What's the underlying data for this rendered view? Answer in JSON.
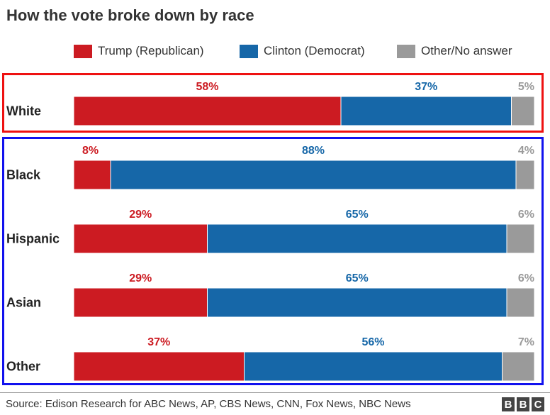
{
  "chart_data": {
    "type": "bar",
    "orientation": "horizontal",
    "stacked": true,
    "title": "How the vote broke down by race",
    "categories": [
      "White",
      "Black",
      "Hispanic",
      "Asian",
      "Other"
    ],
    "series": [
      {
        "name": "Trump (Republican)",
        "color": "#cc1b22",
        "values": [
          58,
          8,
          29,
          29,
          37
        ],
        "labels": [
          "58%",
          "8%",
          "29%",
          "29%",
          "37%"
        ]
      },
      {
        "name": "Clinton (Democrat)",
        "color": "#1667a8",
        "values": [
          37,
          88,
          65,
          65,
          56
        ],
        "labels": [
          "37%",
          "88%",
          "65%",
          "65%",
          "56%"
        ]
      },
      {
        "name": "Other/No answer",
        "color": "#9a9a9a",
        "values": [
          5,
          4,
          6,
          6,
          7
        ],
        "labels": [
          "5%",
          "4%",
          "6%",
          "6%",
          "7%"
        ]
      }
    ],
    "xlim": [
      0,
      100
    ],
    "legend": "top",
    "grid": false
  },
  "label_colors": [
    "#cc1b22",
    "#1667a8",
    "#9a9a9a"
  ],
  "source": "Source: Edison Research for ABC News, AP, CBS News, CNN, Fox News, NBC News",
  "logo_letters": [
    "B",
    "B",
    "C"
  ]
}
